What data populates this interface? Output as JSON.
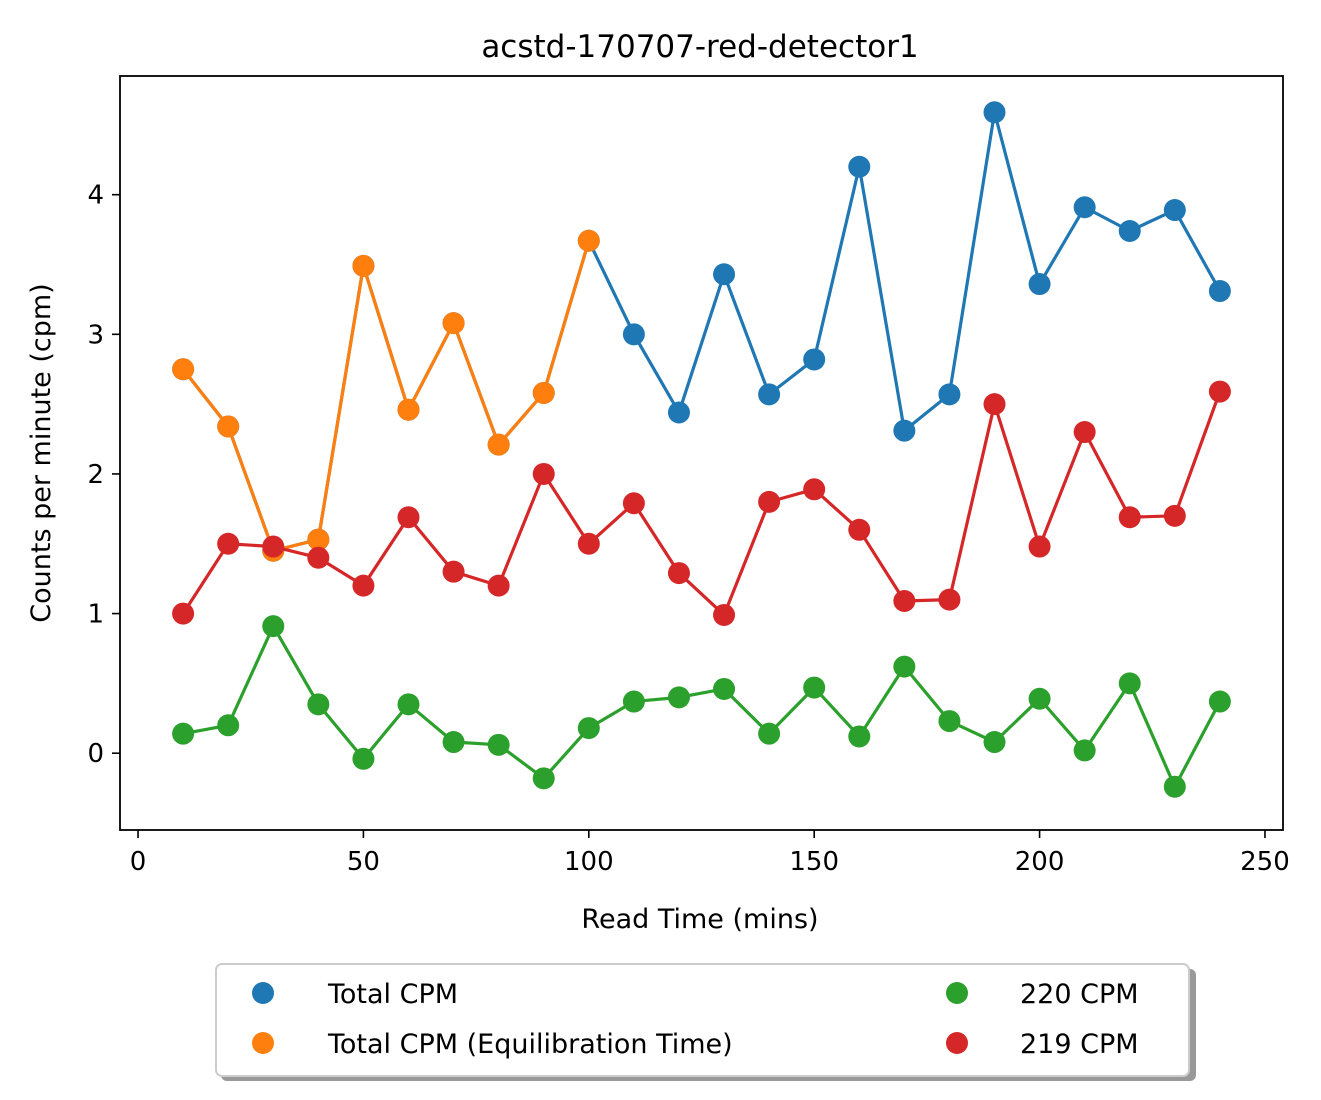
{
  "chart_data": {
    "type": "line",
    "title": "acstd-170707-red-detector1",
    "xlabel": "Read Time (mins)",
    "ylabel": "Counts per minute (cpm)",
    "xlim": [
      -4,
      254
    ],
    "ylim": [
      -0.55,
      4.85
    ],
    "xticks": [
      0,
      50,
      100,
      150,
      200,
      250
    ],
    "yticks": [
      0,
      1,
      2,
      3,
      4
    ],
    "grid": false,
    "legend_placement": "below plot, two columns",
    "series": [
      {
        "name": "Total CPM",
        "color": "#1f77b4",
        "x": [
          10,
          20,
          30,
          40,
          50,
          60,
          70,
          80,
          90,
          100,
          110,
          120,
          130,
          140,
          150,
          160,
          170,
          180,
          190,
          200,
          210,
          220,
          230,
          240
        ],
        "y": [
          2.75,
          2.34,
          1.45,
          1.53,
          3.49,
          2.46,
          3.08,
          2.21,
          2.58,
          3.67,
          3.0,
          2.44,
          3.43,
          2.57,
          2.82,
          4.2,
          2.31,
          2.57,
          4.59,
          3.36,
          3.91,
          3.74,
          3.89,
          3.31
        ]
      },
      {
        "name": "Total CPM (Equilibration Time)",
        "color": "#ff7f0e",
        "x": [
          10,
          20,
          30,
          40,
          50,
          60,
          70,
          80,
          90,
          100
        ],
        "y": [
          2.75,
          2.34,
          1.45,
          1.53,
          3.49,
          2.46,
          3.08,
          2.21,
          2.58,
          3.67
        ]
      },
      {
        "name": "220 CPM",
        "color": "#2ca02c",
        "x": [
          10,
          20,
          30,
          40,
          50,
          60,
          70,
          80,
          90,
          100,
          110,
          120,
          130,
          140,
          150,
          160,
          170,
          180,
          190,
          200,
          210,
          220,
          230,
          240
        ],
        "y": [
          0.14,
          0.2,
          0.91,
          0.35,
          -0.04,
          0.35,
          0.08,
          0.06,
          -0.18,
          0.18,
          0.37,
          0.4,
          0.46,
          0.14,
          0.47,
          0.12,
          0.62,
          0.23,
          0.08,
          0.39,
          0.02,
          0.5,
          -0.24,
          0.37
        ]
      },
      {
        "name": "219 CPM",
        "color": "#d62728",
        "x": [
          10,
          20,
          30,
          40,
          50,
          60,
          70,
          80,
          90,
          100,
          110,
          120,
          130,
          140,
          150,
          160,
          170,
          180,
          190,
          200,
          210,
          220,
          230,
          240
        ],
        "y": [
          1.0,
          1.5,
          1.48,
          1.4,
          1.2,
          1.69,
          1.3,
          1.2,
          2.0,
          1.5,
          1.79,
          1.29,
          0.99,
          1.8,
          1.89,
          1.6,
          1.09,
          1.1,
          2.5,
          1.48,
          2.3,
          1.69,
          1.7,
          2.59
        ]
      }
    ],
    "legend": [
      {
        "series": 0,
        "label": "Total CPM",
        "color": "#1f77b4"
      },
      {
        "series": 1,
        "label": "Total CPM (Equilibration Time)",
        "color": "#ff7f0e"
      },
      {
        "series": 2,
        "label": "220 CPM",
        "color": "#2ca02c"
      },
      {
        "series": 3,
        "label": "219 CPM",
        "color": "#d62728"
      }
    ]
  }
}
